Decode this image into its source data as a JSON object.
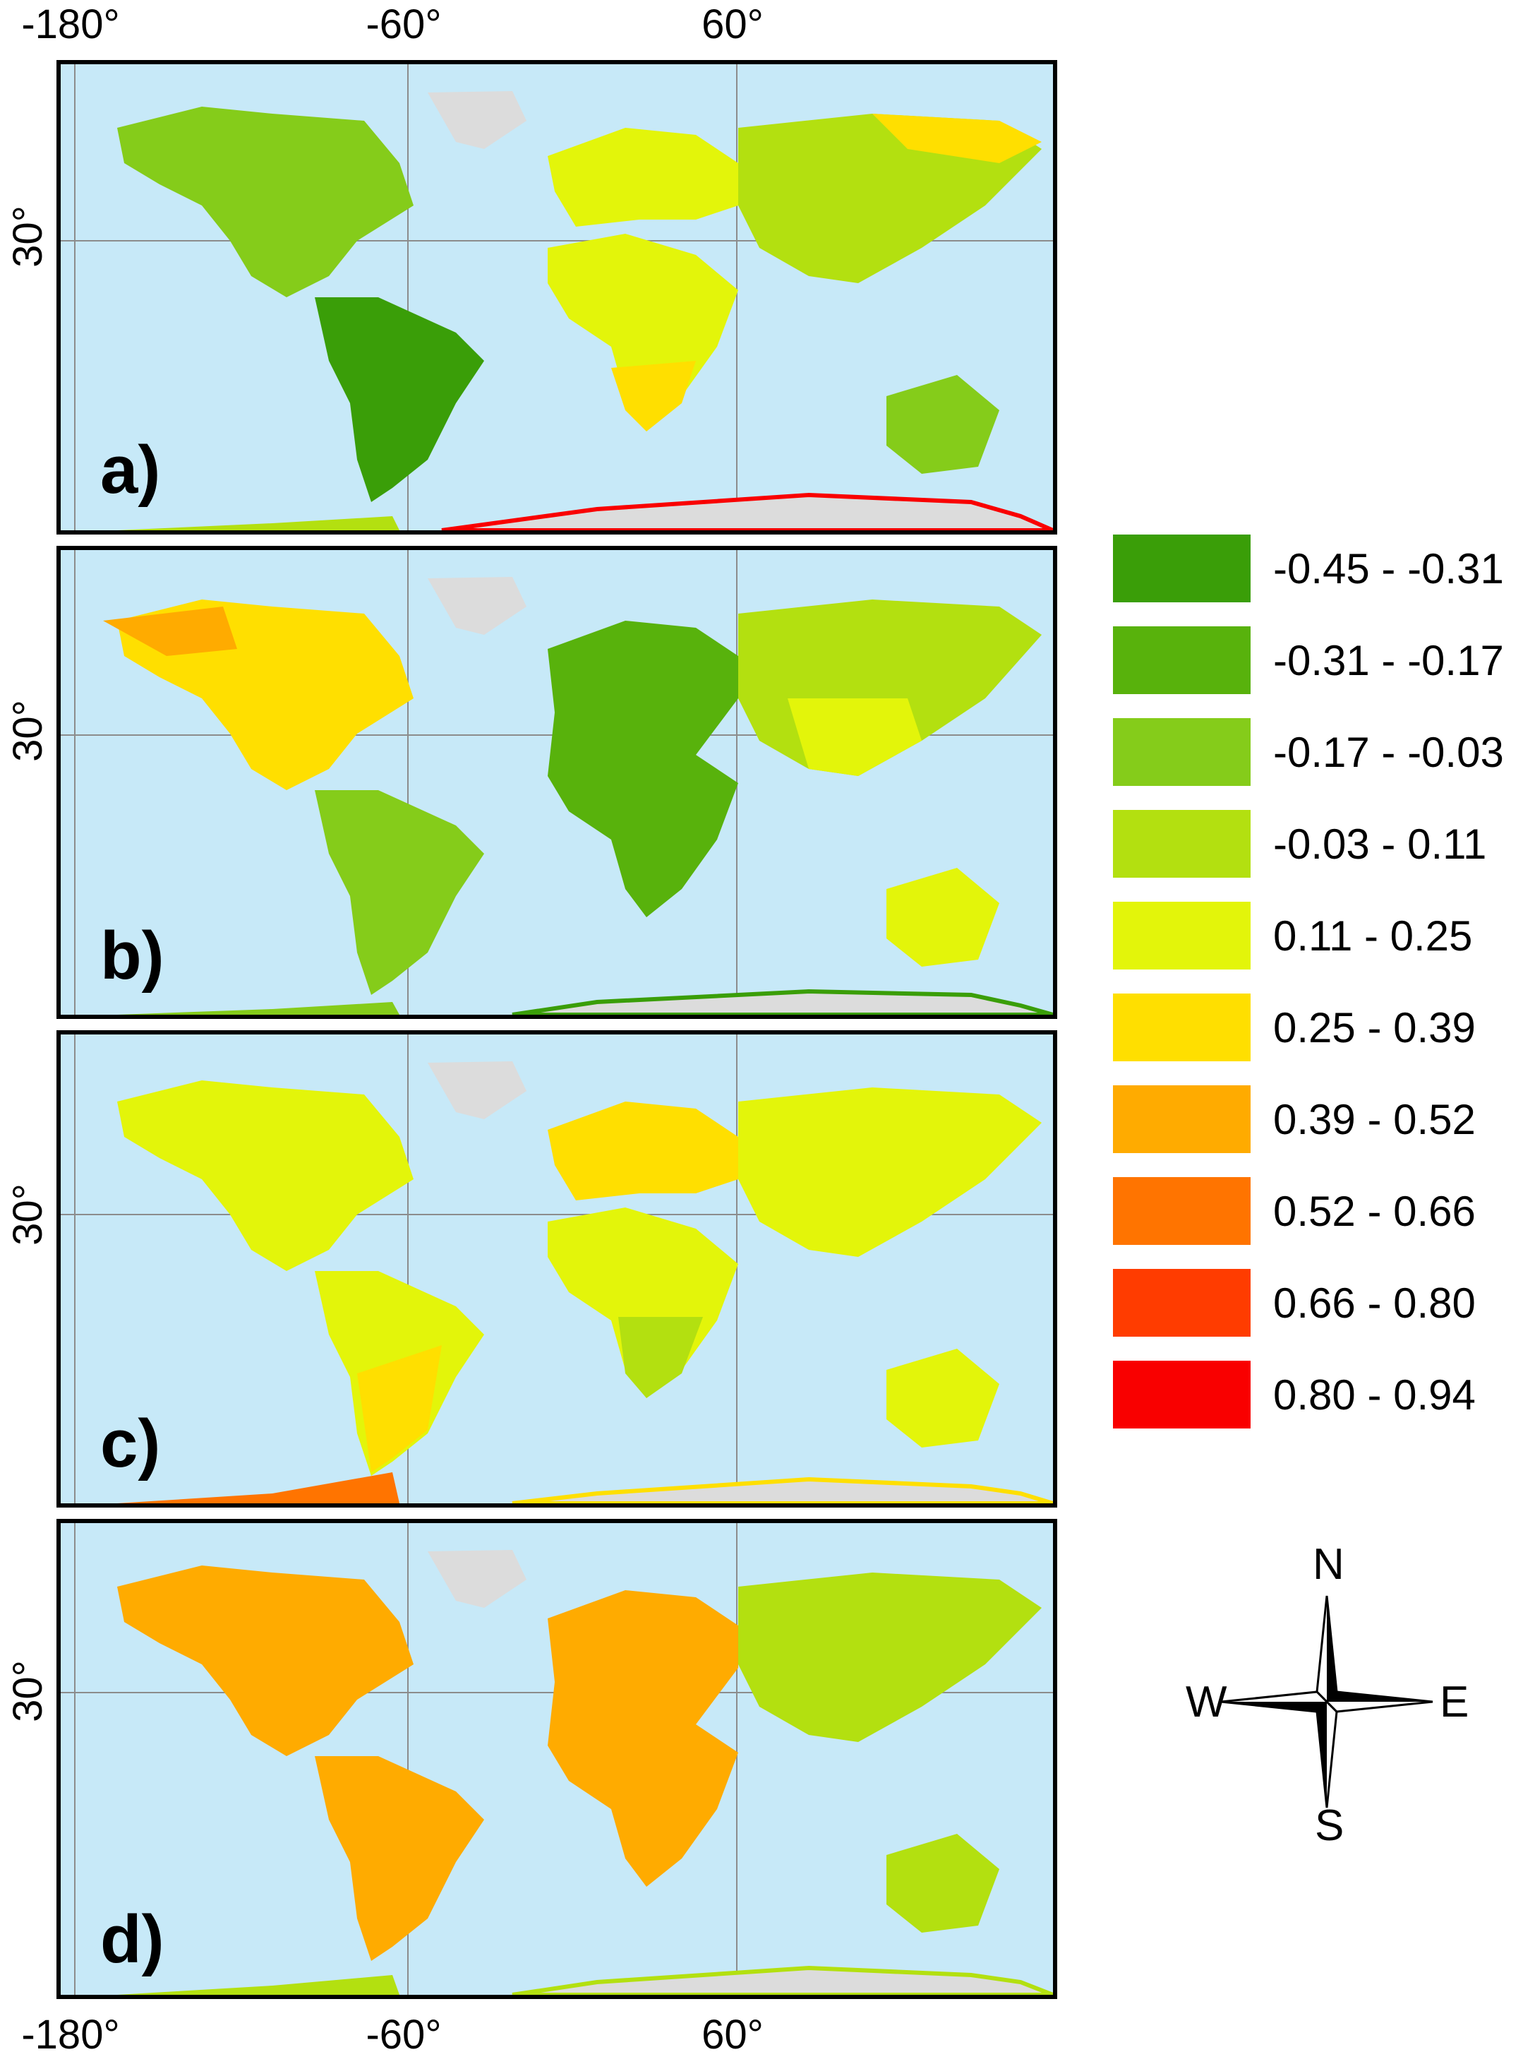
{
  "axes": {
    "lon_ticks": [
      "-180°",
      "-60°",
      "60°"
    ],
    "lat_tick": "30°"
  },
  "panels": [
    {
      "label": "a)"
    },
    {
      "label": "b)"
    },
    {
      "label": "c)"
    },
    {
      "label": "d)"
    }
  ],
  "colors": {
    "ocean": "#c7e9f8",
    "ice": "#dcdcdc"
  },
  "legend": [
    {
      "label": "-0.45 - -0.31",
      "color": "#3a9e08"
    },
    {
      "label": "-0.31 - -0.17",
      "color": "#58b20c"
    },
    {
      "label": "-0.17 - -0.03",
      "color": "#85cc1a"
    },
    {
      "label": "-0.03 - 0.11",
      "color": "#b3e010"
    },
    {
      "label": "0.11 - 0.25",
      "color": "#e3f50a"
    },
    {
      "label": "0.25 - 0.39",
      "color": "#ffdf00"
    },
    {
      "label": "0.39 - 0.52",
      "color": "#ffab00"
    },
    {
      "label": "0.52 - 0.66",
      "color": "#ff7400"
    },
    {
      "label": "0.66 - 0.80",
      "color": "#ff3c00"
    },
    {
      "label": "0.80 - 0.94",
      "color": "#f90000"
    }
  ],
  "compass": {
    "n": "N",
    "s": "S",
    "e": "E",
    "w": "W"
  }
}
